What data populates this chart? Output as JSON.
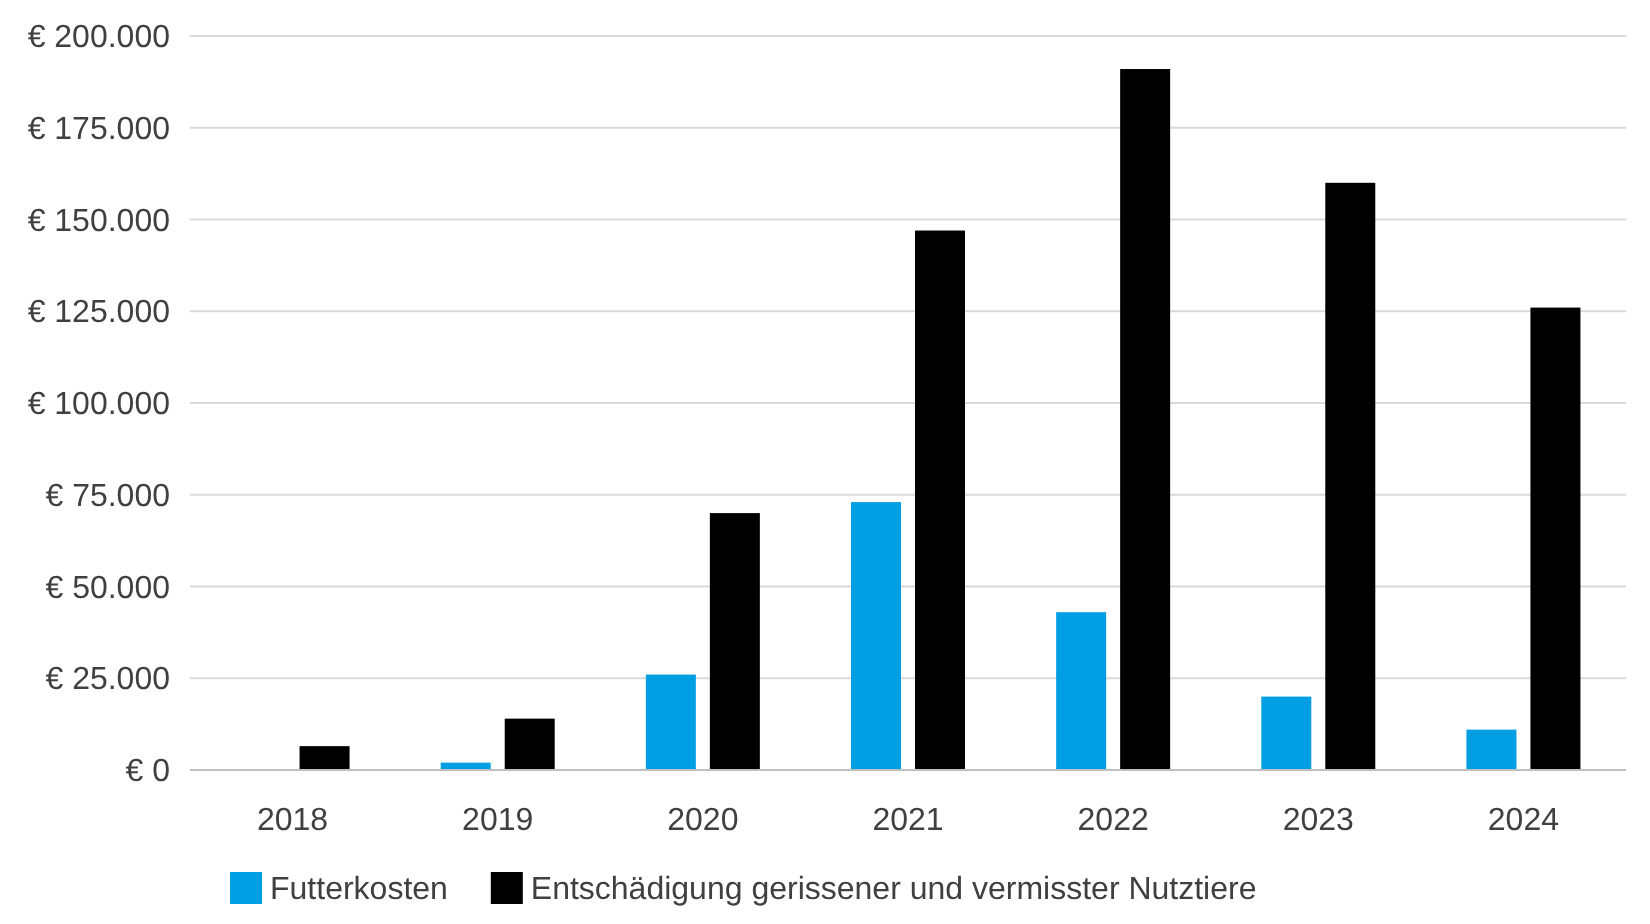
{
  "chart_data": {
    "type": "bar",
    "categories": [
      "2018",
      "2019",
      "2020",
      "2021",
      "2022",
      "2023",
      "2024"
    ],
    "series": [
      {
        "name": "Futterkosten",
        "color": "#009fe3",
        "values": [
          0,
          2000,
          26000,
          73000,
          43000,
          20000,
          11000
        ]
      },
      {
        "name": "Entschädigung gerissener und vermisster Nutztiere",
        "color": "#000000",
        "values": [
          6500,
          14000,
          70000,
          147000,
          191000,
          160000,
          126000
        ]
      }
    ],
    "ylim": [
      0,
      200000
    ],
    "yticks": [
      {
        "value": 0,
        "label": "€ 0"
      },
      {
        "value": 25000,
        "label": "€ 25.000"
      },
      {
        "value": 50000,
        "label": "€ 50.000"
      },
      {
        "value": 75000,
        "label": "€ 75.000"
      },
      {
        "value": 100000,
        "label": "€ 100.000"
      },
      {
        "value": 125000,
        "label": "€ 125.000"
      },
      {
        "value": 150000,
        "label": "€ 150.000"
      },
      {
        "value": 175000,
        "label": "€ 175.000"
      },
      {
        "value": 200000,
        "label": "€ 200.000"
      }
    ],
    "grid": "y",
    "legend": "bottom left"
  }
}
